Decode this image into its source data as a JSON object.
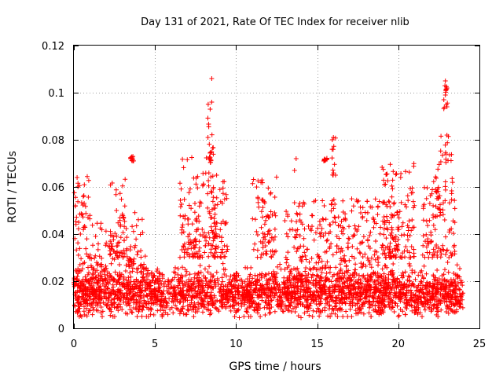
{
  "chart_data": {
    "type": "scatter",
    "title": "Day 131 of 2021, Rate Of TEC Index for receiver nlib",
    "xlabel": "GPS time / hours",
    "ylabel": "ROTI / TECUs",
    "xlim": [
      0,
      25
    ],
    "ylim": [
      0,
      0.12
    ],
    "xticks": [
      0,
      5,
      10,
      15,
      20,
      25
    ],
    "yticks": [
      0,
      0.02,
      0.04,
      0.06,
      0.08,
      0.1,
      0.12
    ],
    "xtick_labels": [
      "0",
      "5",
      "10",
      "15",
      "20",
      "25"
    ],
    "ytick_labels": [
      "0",
      "0.02",
      "0.04",
      "0.06",
      "0.08",
      "0.1",
      "0.12"
    ],
    "grid": true,
    "marker": "+",
    "color": "#ff0000",
    "x_extent": [
      0,
      24
    ],
    "series": [
      {
        "name": "ROTI",
        "base_level": 0.015,
        "base_min": 0.005,
        "base_max": 0.03,
        "excursions": [
          {
            "x": [
              0.0,
              1.0
            ],
            "y": [
              0.02,
              0.065
            ]
          },
          {
            "x": [
              1.0,
              3.0
            ],
            "y": [
              0.02,
              0.045
            ]
          },
          {
            "x": [
              2.2,
              3.2
            ],
            "y": [
              0.03,
              0.065
            ]
          },
          {
            "x": [
              3.5,
              3.7
            ],
            "y": [
              0.071,
              0.073
            ]
          },
          {
            "x": [
              3.2,
              4.5
            ],
            "y": [
              0.025,
              0.05
            ]
          },
          {
            "x": [
              6.5,
              8.8
            ],
            "y": [
              0.03,
              0.075
            ]
          },
          {
            "x": [
              8.2,
              8.6
            ],
            "y": [
              0.07,
              0.096
            ]
          },
          {
            "x": [
              8.5,
              9.5
            ],
            "y": [
              0.03,
              0.065
            ]
          },
          {
            "x": [
              11.0,
              12.5
            ],
            "y": [
              0.03,
              0.065
            ]
          },
          {
            "x": [
              13.0,
              16.5
            ],
            "y": [
              0.02,
              0.055
            ]
          },
          {
            "x": [
              15.4,
              15.6
            ],
            "y": [
              0.071,
              0.073
            ]
          },
          {
            "x": [
              15.9,
              16.2
            ],
            "y": [
              0.065,
              0.082
            ]
          },
          {
            "x": [
              16.5,
              20.0
            ],
            "y": [
              0.02,
              0.055
            ]
          },
          {
            "x": [
              19.0,
              21.0
            ],
            "y": [
              0.03,
              0.07
            ]
          },
          {
            "x": [
              21.5,
              23.5
            ],
            "y": [
              0.03,
              0.065
            ]
          },
          {
            "x": [
              22.3,
              22.7
            ],
            "y": [
              0.055,
              0.075
            ]
          },
          {
            "x": [
              22.6,
              23.3
            ],
            "y": [
              0.07,
              0.083
            ]
          },
          {
            "x": [
              22.8,
              23.1
            ],
            "y": [
              0.093,
              0.105
            ]
          }
        ],
        "points": [
          [
            8.5,
            0.106
          ],
          [
            22.9,
            0.105
          ],
          [
            23.0,
            0.102
          ],
          [
            22.9,
            0.099
          ],
          [
            23.0,
            0.094
          ],
          [
            23.0,
            0.082
          ],
          [
            8.5,
            0.096
          ],
          [
            8.4,
            0.093
          ],
          [
            16.0,
            0.081
          ],
          [
            13.7,
            0.072
          ],
          [
            13.6,
            0.067
          ],
          [
            3.5,
            0.072
          ],
          [
            0.2,
            0.064
          ],
          [
            10.2,
            0.0045
          ],
          [
            14.0,
            0.0045
          ],
          [
            21.2,
            0.006
          ]
        ]
      }
    ]
  }
}
